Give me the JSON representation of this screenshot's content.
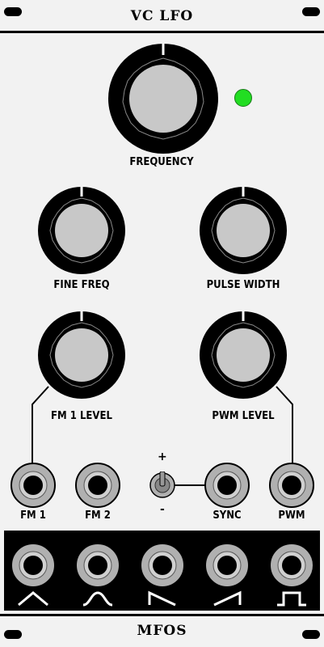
{
  "module": {
    "title": "VC LFO",
    "brand": "MFOS"
  },
  "knobs": {
    "frequency": "FREQUENCY",
    "fine_freq": "FINE FREQ",
    "pulse_width": "PULSE WIDTH",
    "fm1_level": "FM 1 LEVEL",
    "pwm_level": "PWM LEVEL"
  },
  "jacks": {
    "fm1": "FM 1",
    "fm2": "FM 2",
    "sync": "SYNC",
    "pwm": "PWM"
  },
  "switch": {
    "plus": "+",
    "minus": "-"
  },
  "outputs": [
    "triangle-wave-icon",
    "sine-wave-icon",
    "ramp-down-wave-icon",
    "ramp-up-wave-icon",
    "square-wave-icon"
  ],
  "colors": {
    "panel": "#f2f2f2",
    "led": "#22dd22",
    "knob_cap": "#c8c8c8",
    "jack": "#b0b0b0"
  }
}
